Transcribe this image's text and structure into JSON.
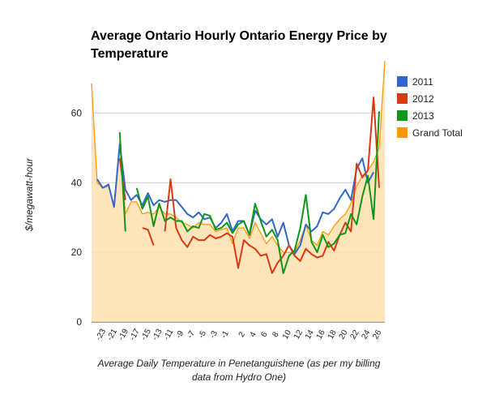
{
  "chart_data": {
    "type": "line",
    "title": "Average Ontario Hourly Ontario Energy Price by Temperature",
    "xlabel": "Average Daily Temperature in Penetanguishene (as per my billing data from Hydro One)",
    "ylabel": "$/megawatt-hour",
    "xlim": [
      -24,
      26
    ],
    "ylim": [
      0,
      75
    ],
    "yticks": [
      0,
      20,
      40,
      60
    ],
    "xtick_labels": [
      "-23",
      "-21",
      "-19",
      "-17",
      "-15",
      "-13",
      "-11",
      "-9",
      "-7",
      "-5",
      "-3",
      "-1",
      "2",
      "4",
      "6",
      "8",
      "10",
      "12",
      "14",
      "16",
      "18",
      "20",
      "22",
      "24",
      "26"
    ],
    "grid": true,
    "legend_position": "right",
    "series": [
      {
        "name": "2011",
        "color": "#3366cc",
        "points": [
          [
            -24,
            41
          ],
          [
            -23,
            38.5
          ],
          [
            -22,
            39.5
          ],
          [
            -21,
            33
          ],
          [
            -20,
            51
          ],
          [
            -19,
            38
          ],
          [
            -18,
            35
          ],
          [
            -17,
            36.5
          ],
          [
            -16,
            33.5
          ],
          [
            -15,
            37
          ],
          [
            -14,
            33.5
          ],
          [
            -13,
            35
          ],
          [
            -12,
            34.5
          ],
          [
            -11,
            35
          ],
          [
            -10,
            35
          ],
          [
            -9,
            33
          ],
          [
            -8,
            31
          ],
          [
            -7,
            30
          ],
          [
            -6,
            31.5
          ],
          [
            -5,
            29.5
          ],
          [
            -4,
            30
          ],
          [
            -3,
            27
          ],
          [
            -2,
            28.5
          ],
          [
            -1,
            31
          ],
          [
            0,
            26
          ],
          [
            1,
            29
          ],
          [
            2,
            29
          ],
          [
            3,
            25
          ],
          [
            4,
            32
          ],
          [
            5,
            29.5
          ],
          [
            6,
            28
          ],
          [
            7,
            29.5
          ],
          [
            8,
            24.5
          ],
          [
            9,
            28.5
          ],
          [
            10,
            22
          ],
          [
            11,
            19.5
          ],
          [
            12,
            22
          ],
          [
            13,
            28
          ],
          [
            14,
            26
          ],
          [
            15,
            27.5
          ],
          [
            16,
            31.5
          ],
          [
            17,
            31
          ],
          [
            18,
            32.5
          ],
          [
            19,
            35.5
          ],
          [
            20,
            38
          ],
          [
            21,
            35
          ],
          [
            22,
            44
          ],
          [
            23,
            47
          ],
          [
            24,
            40
          ],
          [
            25,
            43
          ]
        ]
      },
      {
        "name": "2012",
        "color": "#dc3912",
        "segments": [
          [
            [
              -20,
              47
            ],
            [
              -19,
              35
            ]
          ],
          [
            [
              -16,
              27
            ],
            [
              -15,
              26.5
            ],
            [
              -14,
              22
            ]
          ],
          [
            [
              -12,
              26
            ],
            [
              -11,
              41
            ],
            [
              -10,
              27
            ],
            [
              -9,
              23.5
            ],
            [
              -8,
              21.5
            ],
            [
              -7,
              24.5
            ],
            [
              -6,
              23.5
            ],
            [
              -5,
              23.5
            ],
            [
              -4,
              25
            ],
            [
              -3,
              24
            ],
            [
              -2,
              24.5
            ],
            [
              -1,
              25.5
            ],
            [
              0,
              24.5
            ],
            [
              1,
              15.5
            ],
            [
              2,
              23.5
            ],
            [
              3,
              22
            ],
            [
              4,
              21
            ],
            [
              5,
              19
            ],
            [
              6,
              19.5
            ],
            [
              7,
              14
            ],
            [
              8,
              17
            ],
            [
              9,
              19
            ],
            [
              10,
              22
            ],
            [
              11,
              19
            ],
            [
              12,
              17.5
            ],
            [
              13,
              21
            ],
            [
              14,
              19.5
            ],
            [
              15,
              18.5
            ],
            [
              16,
              19
            ],
            [
              17,
              23
            ],
            [
              18,
              20.5
            ],
            [
              19,
              25
            ],
            [
              20,
              28.5
            ],
            [
              21,
              26
            ],
            [
              22,
              45.5
            ],
            [
              23,
              41.5
            ],
            [
              24,
              43.5
            ],
            [
              25,
              64.5
            ],
            [
              26,
              38.5
            ]
          ]
        ]
      },
      {
        "name": "2013",
        "color": "#109618",
        "segments": [
          [
            [
              -20,
              54.5
            ],
            [
              -19,
              26
            ]
          ],
          [
            [
              -17,
              38.5
            ],
            [
              -16,
              32.5
            ],
            [
              -15,
              36
            ],
            [
              -14,
              27.5
            ],
            [
              -13,
              34
            ],
            [
              -12,
              29
            ],
            [
              -11,
              30
            ],
            [
              -10,
              29
            ],
            [
              -9,
              29
            ],
            [
              -8,
              26
            ],
            [
              -7,
              27.5
            ],
            [
              -6,
              27
            ],
            [
              -5,
              31
            ],
            [
              -4,
              30.5
            ],
            [
              -3,
              26.5
            ],
            [
              -2,
              27
            ],
            [
              -1,
              28.5
            ],
            [
              0,
              25.5
            ],
            [
              1,
              28
            ],
            [
              2,
              29
            ],
            [
              3,
              25
            ],
            [
              4,
              34
            ],
            [
              5,
              29
            ],
            [
              6,
              24.5
            ],
            [
              7,
              26.5
            ],
            [
              8,
              23.5
            ],
            [
              9,
              14
            ],
            [
              10,
              19
            ],
            [
              11,
              20.5
            ],
            [
              12,
              27
            ],
            [
              13,
              36.5
            ],
            [
              14,
              23
            ],
            [
              15,
              20
            ],
            [
              16,
              25
            ],
            [
              17,
              21.5
            ],
            [
              18,
              22.5
            ],
            [
              19,
              25
            ],
            [
              20,
              25.5
            ],
            [
              21,
              31
            ],
            [
              22,
              28
            ],
            [
              23,
              36
            ],
            [
              24,
              42
            ],
            [
              25,
              29.5
            ],
            [
              26,
              60.5
            ]
          ]
        ]
      },
      {
        "name": "Grand Total",
        "color": "#ff9900",
        "points": [
          [
            -25,
            68.5
          ],
          [
            -24,
            40
          ],
          [
            -23,
            38.5
          ],
          [
            -22,
            39
          ],
          [
            -21,
            33.5
          ],
          [
            -20,
            52
          ],
          [
            -19,
            31
          ],
          [
            -18,
            34.5
          ],
          [
            -17,
            34.5
          ],
          [
            -16,
            31
          ],
          [
            -15,
            31.5
          ],
          [
            -14,
            31
          ],
          [
            -13,
            33
          ],
          [
            -12,
            31
          ],
          [
            -11,
            31
          ],
          [
            -10,
            30
          ],
          [
            -9,
            28.5
          ],
          [
            -8,
            28
          ],
          [
            -7,
            27
          ],
          [
            -6,
            28.5
          ],
          [
            -5,
            28
          ],
          [
            -4,
            28
          ],
          [
            -3,
            26
          ],
          [
            -2,
            26.5
          ],
          [
            -1,
            27
          ],
          [
            0,
            22.5
          ],
          [
            1,
            27
          ],
          [
            2,
            27
          ],
          [
            3,
            24
          ],
          [
            4,
            28.5
          ],
          [
            5,
            25.5
          ],
          [
            6,
            22.5
          ],
          [
            7,
            24.5
          ],
          [
            8,
            22
          ],
          [
            9,
            20
          ],
          [
            10,
            20
          ],
          [
            11,
            20
          ],
          [
            12,
            23.5
          ],
          [
            13,
            28
          ],
          [
            14,
            23.5
          ],
          [
            15,
            22
          ],
          [
            16,
            26
          ],
          [
            17,
            25
          ],
          [
            18,
            27.5
          ],
          [
            19,
            29.5
          ],
          [
            20,
            31
          ],
          [
            21,
            34
          ],
          [
            22,
            39
          ],
          [
            23,
            42
          ],
          [
            24,
            43.5
          ],
          [
            25,
            46
          ],
          [
            26,
            50
          ],
          [
            27,
            75
          ]
        ]
      }
    ]
  }
}
